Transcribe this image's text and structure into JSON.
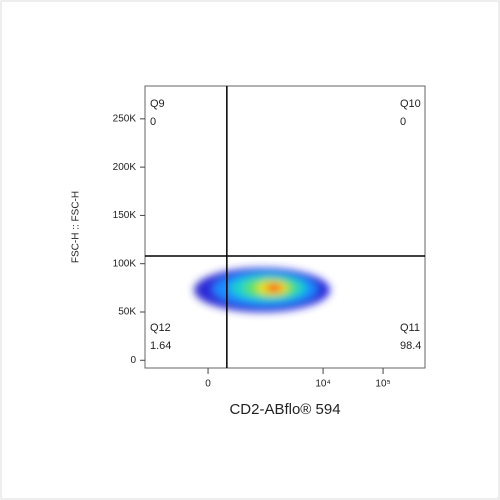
{
  "chart_data": {
    "type": "flow-quadrant",
    "x_label": "CD2-ABflo® 594",
    "y_label": "FSC-H :: FSC-H",
    "xscale": "biexponential",
    "xlim": [
      -1350,
      500000
    ],
    "xticks": [
      0,
      {
        "value": 10000,
        "label": "10⁴"
      },
      {
        "value": 100000,
        "label": "10⁵"
      }
    ],
    "ylim": [
      -8000,
      284000
    ],
    "yticks": [
      0,
      {
        "value": 50000,
        "label": "50K"
      },
      {
        "value": 100000,
        "label": "100K"
      },
      {
        "value": 150000,
        "label": "150K"
      },
      {
        "value": 200000,
        "label": "200K"
      },
      {
        "value": 250000,
        "label": "250K"
      }
    ],
    "gate_x": 190,
    "gate_y": 108000,
    "quadrants": [
      {
        "name": "Q9",
        "value": 0,
        "corner": "top-left"
      },
      {
        "name": "Q10",
        "value": 0,
        "corner": "top-right"
      },
      {
        "name": "Q11",
        "value": 98.4,
        "corner": "bottom-right"
      },
      {
        "name": "Q12",
        "value": 1.64,
        "corner": "bottom-left"
      }
    ]
  }
}
